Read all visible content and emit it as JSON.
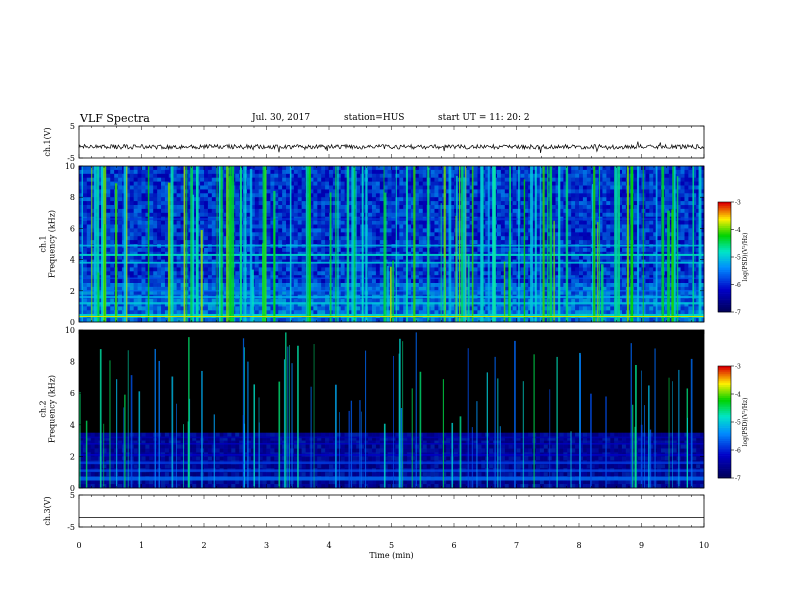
{
  "header": {
    "title": "VLF Spectra",
    "date": "Jul. 30, 2017",
    "station": "station=HUS",
    "start": "start UT =  11: 20: 2"
  },
  "chart_data": [
    {
      "type": "line",
      "ylabel": "ch.1(V)",
      "ylim": [
        -5,
        5
      ],
      "yticks": [
        "5",
        "-5"
      ],
      "xlim": [
        0,
        10
      ],
      "baseline": -1.5
    },
    {
      "type": "heatmap",
      "ylabel": "ch.1\nFrequency (kHz)",
      "ylim": [
        0,
        10
      ],
      "yticks": [
        "0",
        "2",
        "4",
        "6",
        "8",
        "10"
      ],
      "xlim": [
        0,
        10
      ],
      "colorbar": {
        "label": "log(PSD)(V²/Hz)",
        "ticks": [
          "-3",
          "-4",
          "-5",
          "-6",
          "-7"
        ],
        "range": [
          -7,
          -3
        ]
      }
    },
    {
      "type": "heatmap",
      "ylabel": "ch.2\nFrequency (kHz)",
      "ylim": [
        0,
        10
      ],
      "yticks": [
        "0",
        "2",
        "4",
        "6",
        "8",
        "10"
      ],
      "xlim": [
        0,
        10
      ],
      "colorbar": {
        "label": "log(PSD)(V²/Hz)",
        "ticks": [
          "-3",
          "-4",
          "-5",
          "-6",
          "-7"
        ],
        "range": [
          -7,
          -3
        ]
      }
    },
    {
      "type": "line",
      "ylabel": "ch.3(V)",
      "ylim": [
        -5,
        5
      ],
      "yticks": [
        "5",
        "-5"
      ],
      "xlim": [
        0,
        10
      ],
      "baseline": -2.0,
      "xlabel": "Time (min)",
      "xticks": [
        "0",
        "1",
        "2",
        "3",
        "4",
        "5",
        "6",
        "7",
        "8",
        "9",
        "10"
      ]
    }
  ]
}
